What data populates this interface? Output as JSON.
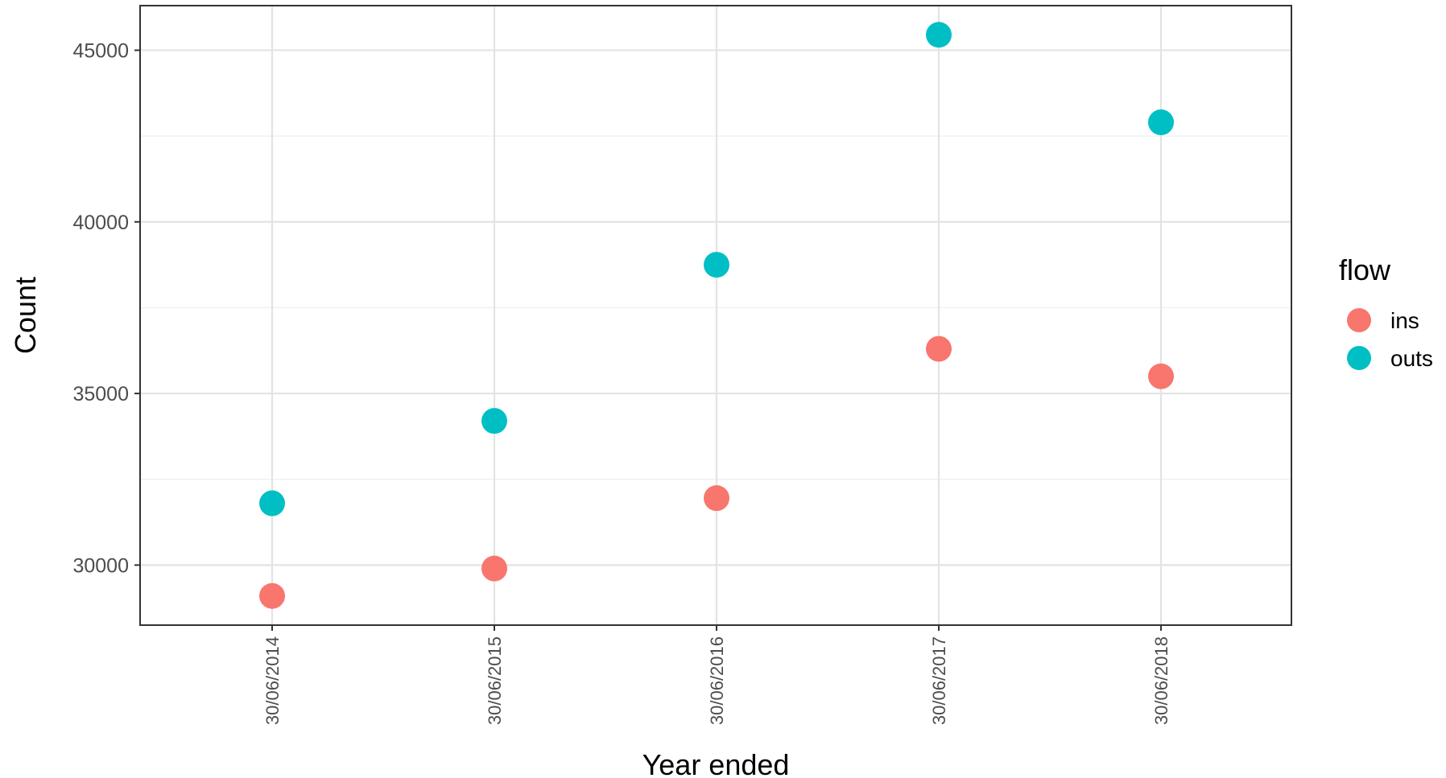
{
  "chart_data": {
    "type": "scatter",
    "xlabel": "Year ended",
    "ylabel": "Count",
    "categories": [
      "30/06/2014",
      "30/06/2015",
      "30/06/2016",
      "30/06/2017",
      "30/06/2018"
    ],
    "ylim": [
      28250,
      46300
    ],
    "yticks": [
      30000,
      35000,
      40000,
      45000
    ],
    "ytick_labels": [
      "30000",
      "35000",
      "40000",
      "45000"
    ],
    "y_minor_gridlines": [
      32500,
      37500,
      42500
    ],
    "grid": true,
    "legend": {
      "title": "flow",
      "position": "right"
    },
    "series": [
      {
        "name": "ins",
        "color": "#F8766D",
        "values": [
          29100,
          29900,
          31950,
          36300,
          35500
        ]
      },
      {
        "name": "outs",
        "color": "#00BFC4",
        "values": [
          31800,
          34200,
          38750,
          45450,
          42900
        ]
      }
    ]
  }
}
